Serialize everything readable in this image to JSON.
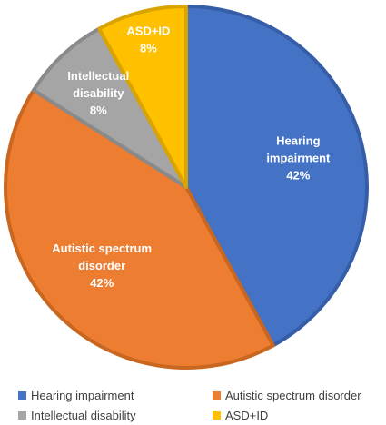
{
  "chart_data": {
    "type": "pie",
    "title": "",
    "slices": [
      {
        "label": "Hearing impairment",
        "label_lines": [
          "Hearing",
          "impairment"
        ],
        "value": 42,
        "value_label": "42%",
        "color": "#4472C4",
        "edge": "#355DA8"
      },
      {
        "label": "Autistic spectrum disorder",
        "label_lines": [
          "Autistic spectrum",
          "disorder"
        ],
        "value": 42,
        "value_label": "42%",
        "color": "#ED7D31",
        "edge": "#C9661F"
      },
      {
        "label": "Intellectual disability",
        "label_lines": [
          "Intellectual",
          "disability"
        ],
        "value": 8,
        "value_label": "8%",
        "color": "#A5A5A5",
        "edge": "#8A8A8A"
      },
      {
        "label": "ASD+ID",
        "label_lines": [
          "ASD+ID"
        ],
        "value": 8,
        "value_label": "8%",
        "color": "#FFC000",
        "edge": "#D9A300"
      }
    ],
    "legend_position": "bottom"
  },
  "legend": {
    "items": [
      {
        "label": "Hearing impairment",
        "color": "#4472C4"
      },
      {
        "label": "Autistic spectrum disorder",
        "color": "#ED7D31"
      },
      {
        "label": "Intellectual disability",
        "color": "#A5A5A5"
      },
      {
        "label": "ASD+ID",
        "color": "#FFC000"
      }
    ]
  }
}
